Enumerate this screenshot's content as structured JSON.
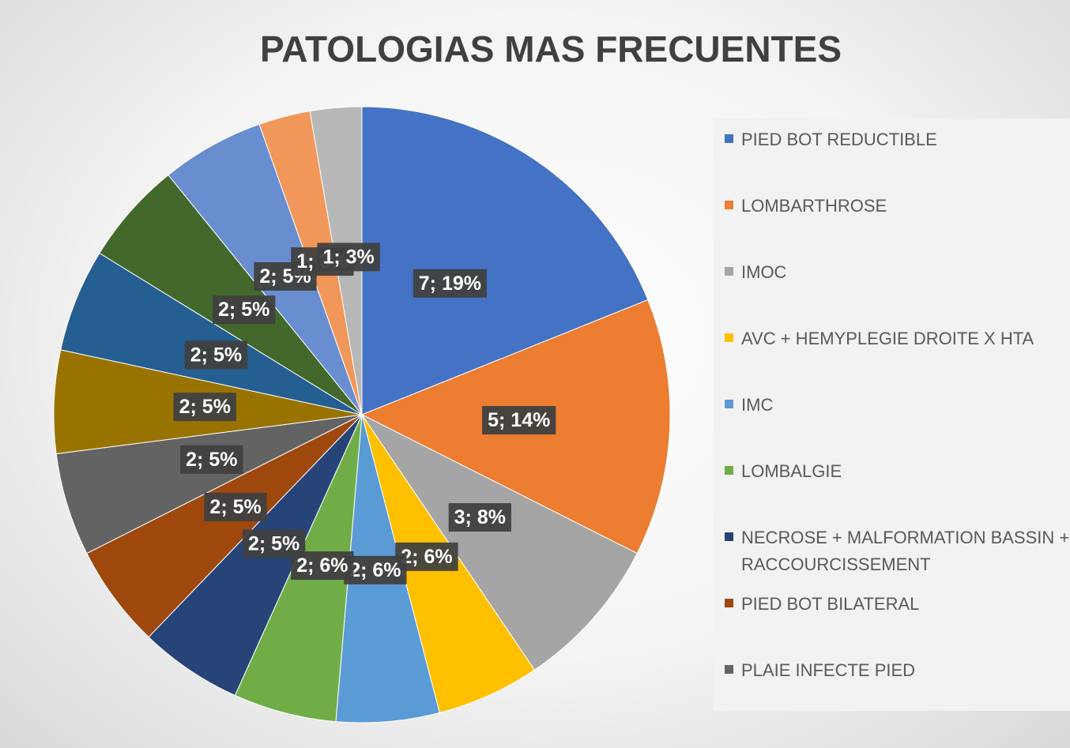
{
  "chart_data": {
    "type": "pie",
    "title": "PATOLOGIAS MAS FRECUENTES",
    "categories": [
      "PIED BOT REDUCTIBLE",
      "LOMBARTHROSE",
      "IMOC",
      "AVC + HEMYPLEGIE DROITE X HTA",
      "IMC",
      "LOMBALGIE",
      "NECROSE + MALFORMATION BASSIN + RACCOURCISSEMENT",
      "PIED BOT BILATERAL",
      "PLAIE INFECTE PIED",
      null,
      null,
      null,
      null,
      null,
      null
    ],
    "values": [
      7,
      5,
      3,
      2,
      2,
      2,
      2,
      2,
      2,
      2,
      2,
      2,
      2,
      1,
      1
    ],
    "value_labels": [
      "7; 19%",
      "5; 14%",
      "3; 8%",
      "2; 6%",
      "2; 6%",
      "2; 6%",
      "2; 5%",
      "2; 5%",
      "2; 5%",
      "2; 5%",
      "2; 5%",
      "2; 5%",
      "2; 5%",
      "1; 3%",
      "1; 3%"
    ],
    "colors": [
      "#4472c4",
      "#ed7d31",
      "#a5a5a5",
      "#ffc000",
      "#5b9bd5",
      "#70ad47",
      "#264478",
      "#9e480e",
      "#636363",
      "#997300",
      "#255e91",
      "#43682b",
      "#698ed0",
      "#f1975a",
      "#b7b7b7"
    ],
    "legend": "right"
  }
}
